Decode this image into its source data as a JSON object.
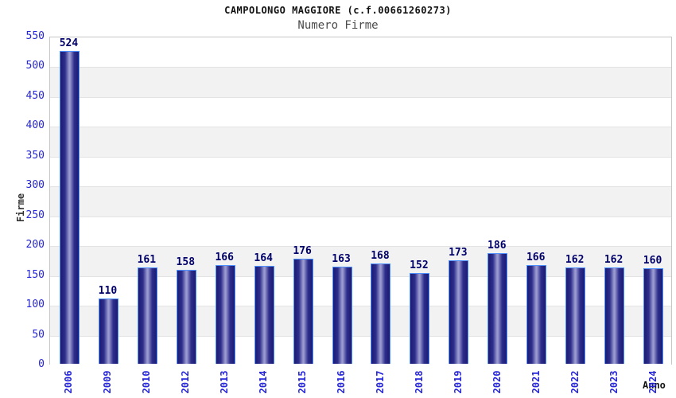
{
  "header": {
    "title": "CAMPOLONGO MAGGIORE (c.f.00661260273)",
    "subtitle": "Numero Firme"
  },
  "chart_data": {
    "type": "bar",
    "title": "CAMPOLONGO MAGGIORE (c.f.00661260273)",
    "subtitle": "Numero Firme",
    "xlabel": "Anno",
    "ylabel": "Firme",
    "categories": [
      "2006",
      "2009",
      "2010",
      "2012",
      "2013",
      "2014",
      "2015",
      "2016",
      "2017",
      "2018",
      "2019",
      "2020",
      "2021",
      "2022",
      "2023",
      "2024"
    ],
    "values": [
      524,
      110,
      161,
      158,
      166,
      164,
      176,
      163,
      168,
      152,
      173,
      186,
      166,
      162,
      162,
      160
    ],
    "ylim": [
      0,
      550
    ],
    "ytick_step": 50,
    "yticks": [
      550,
      500,
      450,
      400,
      350,
      300,
      250,
      200,
      150,
      100,
      50,
      0
    ],
    "grid": "horizontal alternating bands every 50 units",
    "legend": "none",
    "bar_labels_shown": true,
    "colors": {
      "bar_edge_dark": "#1b1b74",
      "bar_mid_dark": "#2e2e8c",
      "bar_center_light": "#9a9ad1",
      "bar_outline": "#4d90fe",
      "tick_label_blue": "#2626d8",
      "value_label_navy": "#00006b",
      "band_gray": "#f2f2f2",
      "band_line": "#e3e3e3",
      "plot_border": "#c6c6c6",
      "title_color": "#111111",
      "subtitle_color": "#4a4a4a",
      "axis_title_color": "#333333",
      "background": "#ffffff"
    }
  }
}
